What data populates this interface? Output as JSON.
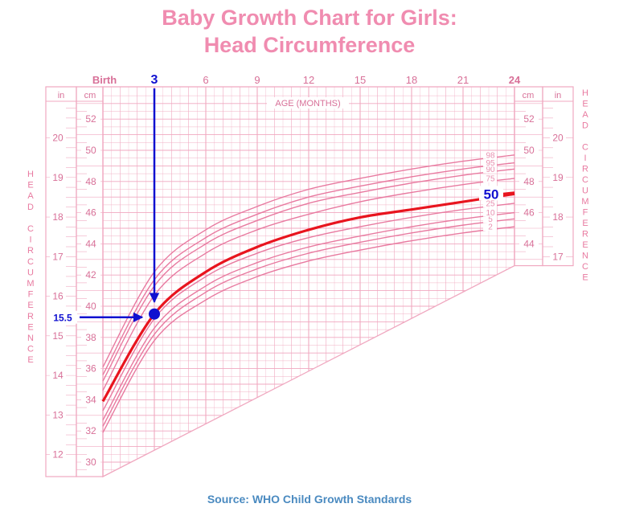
{
  "title_line1": "Baby Growth Chart for Girls:",
  "title_line2": "Head Circumference",
  "source": "Source: WHO Child Growth Standards",
  "colors": {
    "grid": "#f0a8c0",
    "curve": "#e87aa0",
    "highlight": "#e8141e",
    "annotation": "#1010d0",
    "title": "#f08cb0",
    "source": "#4a8ac0"
  },
  "chart_data": {
    "type": "line",
    "title": "Baby Growth Chart for Girls: Head Circumference",
    "xlabel": "AGE (MONTHS)",
    "ylabel_left": "HEAD CIRCUMFERENCE",
    "ylabel_right": "HEAD CIRCUMFERENCE",
    "x_unit": "months",
    "xlim": [
      0,
      24
    ],
    "x_ticks": [
      {
        "value": 0,
        "label": "Birth"
      },
      {
        "value": 3,
        "label": "3"
      },
      {
        "value": 6,
        "label": "6"
      },
      {
        "value": 9,
        "label": "9"
      },
      {
        "value": 12,
        "label": "12"
      },
      {
        "value": 15,
        "label": "15"
      },
      {
        "value": 18,
        "label": "18"
      },
      {
        "value": 21,
        "label": "21"
      },
      {
        "value": 24,
        "label": "24"
      }
    ],
    "y_unit_cm": "cm",
    "y_unit_in": "in",
    "cm_ticks": [
      30,
      32,
      34,
      36,
      38,
      40,
      42,
      44,
      46,
      48,
      50,
      52
    ],
    "cm_ticks_right": [
      44,
      46,
      48,
      50,
      52
    ],
    "in_ticks": [
      12,
      13,
      14,
      15,
      16,
      17,
      18,
      19,
      20
    ],
    "in_ticks_right": [
      17,
      18,
      19,
      20
    ],
    "grid": true,
    "x": [
      0,
      3,
      6,
      9,
      12,
      15,
      18,
      21,
      24
    ],
    "series": [
      {
        "name": "2",
        "values": [
          31.9,
          37.8,
          40.4,
          41.9,
          42.9,
          43.6,
          44.2,
          44.7,
          45.1
        ]
      },
      {
        "name": "5",
        "values": [
          32.3,
          38.2,
          40.9,
          42.4,
          43.4,
          44.1,
          44.7,
          45.2,
          45.6
        ]
      },
      {
        "name": "10",
        "values": [
          32.7,
          38.6,
          41.3,
          42.8,
          43.8,
          44.5,
          45.1,
          45.6,
          46.0
        ]
      },
      {
        "name": "25",
        "values": [
          33.3,
          39.2,
          41.9,
          43.4,
          44.4,
          45.1,
          45.7,
          46.2,
          46.6
        ]
      },
      {
        "name": "50",
        "values": [
          33.9,
          39.5,
          42.2,
          43.8,
          44.9,
          45.7,
          46.2,
          46.7,
          47.2
        ]
      },
      {
        "name": "75",
        "values": [
          34.6,
          40.7,
          43.4,
          44.9,
          45.9,
          46.7,
          47.3,
          47.8,
          48.2
        ]
      },
      {
        "name": "90",
        "values": [
          35.2,
          41.3,
          44.0,
          45.5,
          46.6,
          47.3,
          47.9,
          48.4,
          48.8
        ]
      },
      {
        "name": "95",
        "values": [
          35.6,
          41.7,
          44.4,
          45.9,
          47.0,
          47.7,
          48.3,
          48.8,
          49.2
        ]
      },
      {
        "name": "98",
        "values": [
          36.1,
          42.2,
          44.9,
          46.4,
          47.5,
          48.2,
          48.8,
          49.3,
          49.7
        ]
      }
    ],
    "highlight_series": "50",
    "highlight_label": "50",
    "annotation": {
      "x_label": "3",
      "y_label": "15.5",
      "x_value": 3,
      "y_value_cm": 39.5
    }
  }
}
